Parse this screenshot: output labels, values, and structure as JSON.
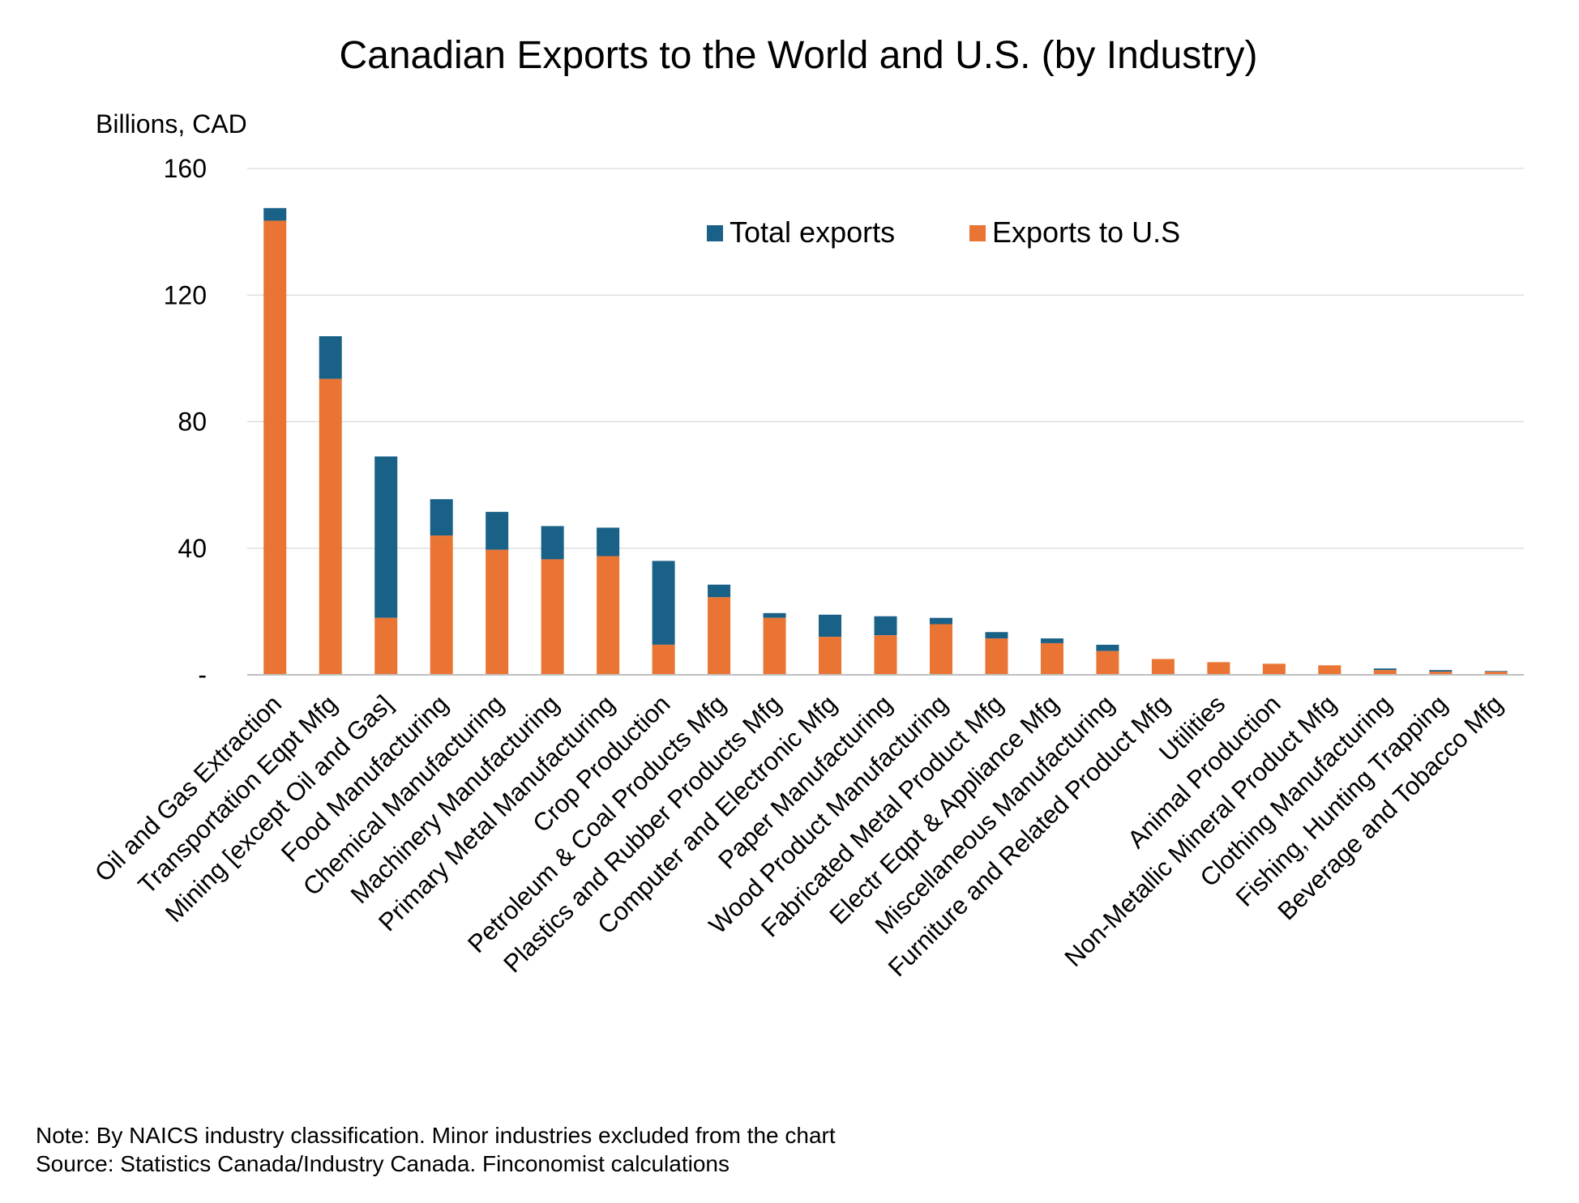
{
  "chart_data": {
    "type": "bar",
    "title": "Canadian Exports to the World and U.S. (by Industry)",
    "ylabel": "Billions, CAD",
    "xlabel": "",
    "ylim": [
      0,
      160
    ],
    "yticks": [
      0,
      40,
      80,
      120,
      160
    ],
    "ytick_labels": [
      "-",
      "40",
      "80",
      "120",
      "160"
    ],
    "grid": true,
    "legend_position": "top-right",
    "categories": [
      "Oil and Gas Extraction",
      "Transportation Eqpt Mfg",
      "Mining [except Oil and Gas]",
      "Food Manufacturing",
      "Chemical Manufacturing",
      "Machinery Manufacturing",
      "Primary Metal Manufacturing",
      "Crop Production",
      "Petroleum & Coal Products Mfg",
      "Plastics and Rubber Products Mfg",
      "Computer and Electronic Mfg",
      "Paper Manufacturing",
      "Wood Product Manufacturing",
      "Fabricated Metal Product Mfg",
      "Electr Eqpt & Appliance Mfg",
      "Miscellaneous Manufacturing",
      "Furniture and Related Product Mfg",
      "Utilities",
      "Animal Production",
      "Non-Metallic Mineral Product Mfg",
      "Clothing Manufacturing",
      "Fishing, Hunting Trapping",
      "Beverage and Tobacco Mfg"
    ],
    "series": [
      {
        "name": "Total exports",
        "color": "#1a6187",
        "values": [
          147.5,
          107,
          69,
          55.5,
          51.5,
          47,
          46.5,
          36,
          28.5,
          19.5,
          19,
          18.5,
          18,
          13.5,
          11.5,
          9.5,
          5,
          4,
          3.5,
          3,
          2,
          1.5,
          1.2
        ]
      },
      {
        "name": "Exports to U.S",
        "color": "#ea7433",
        "values": [
          143.5,
          93.5,
          18,
          44,
          39.5,
          36.5,
          37.5,
          9.5,
          24.5,
          18,
          12,
          12.5,
          16,
          11.5,
          10,
          7.5,
          5,
          4,
          3.5,
          3,
          1.5,
          1,
          1
        ]
      }
    ]
  },
  "notes": {
    "note": "Note: By NAICS industry classification. Minor industries excluded  from the chart",
    "source": "Source: Statistics Canada/Industry Canada. Finconomist calculations"
  },
  "colors": {
    "grid": "#d9d9d9",
    "axis": "#bfbfbf",
    "text": "#000000"
  }
}
